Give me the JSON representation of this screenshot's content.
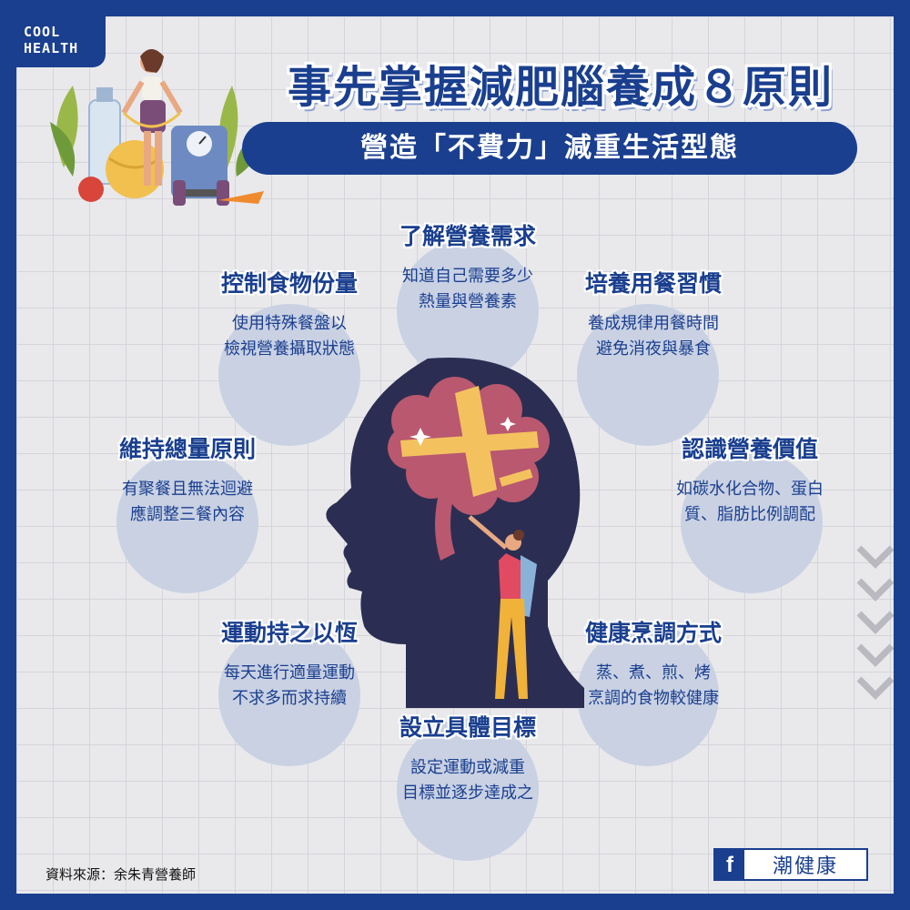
{
  "brand": {
    "line1": "COOL",
    "line2": "HEALTH"
  },
  "title": "事先掌握減肥腦養成８原則",
  "subtitle": "營造「不費力」減重生活型態",
  "principles": [
    {
      "heading": "了解營養需求",
      "line1": "知道自己需要多少",
      "line2": "熱量與營養素"
    },
    {
      "heading": "控制食物份量",
      "line1": "使用特殊餐盤以",
      "line2": "檢視營養攝取狀態"
    },
    {
      "heading": "培養用餐習慣",
      "line1": "養成規律用餐時間",
      "line2": "避免消夜與暴食"
    },
    {
      "heading": "維持總量原則",
      "line1": "有聚餐且無法迴避",
      "line2": "應調整三餐內容"
    },
    {
      "heading": "認識營養價值",
      "line1": "如碳水化合物、蛋白",
      "line2": "質、脂肪比例調配"
    },
    {
      "heading": "運動持之以恆",
      "line1": "每天進行適量運動",
      "line2": "不求多而求持續"
    },
    {
      "heading": "健康烹調方式",
      "line1": "蒸、煮、煎、烤",
      "line2": "烹調的食物較健康"
    },
    {
      "heading": "設立具體目標",
      "line1": "設定運動或減重",
      "line2": "目標並逐步達成之"
    }
  ],
  "source": "資料來源：余朱青營養師",
  "facebook": {
    "icon": "f",
    "label": "潮健康"
  },
  "icons": {
    "illustration_top_left": "woman-with-scale-illustration",
    "center": "head-brain-measuring-tape-illustration",
    "decoration_right": "chevron-down-icon",
    "social": "facebook-icon"
  },
  "colors": {
    "primary": "#1a3f8f",
    "background": "#e9e9ec",
    "circle": "#c9d1e3",
    "brain": "#b9586f",
    "tape": "#f3c25f"
  }
}
